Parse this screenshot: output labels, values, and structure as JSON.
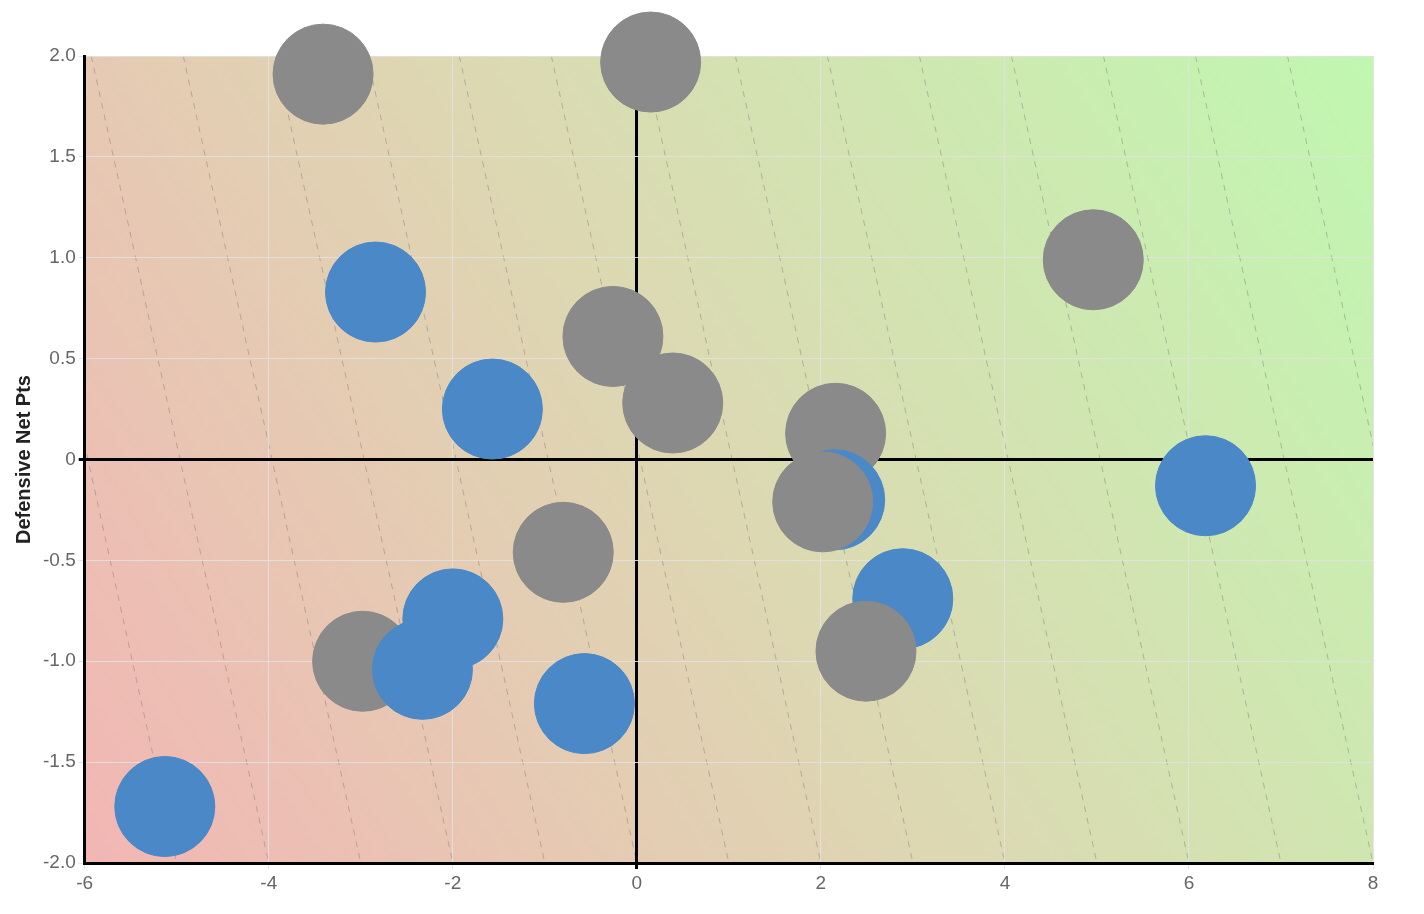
{
  "chart_data": {
    "type": "scatter",
    "ylabel": "Defensive Net Pts",
    "x": [
      -3.41,
      0.15,
      4.96,
      -2.84,
      -0.26,
      -1.57,
      0.39,
      2.16,
      6.18,
      2.15,
      2.02,
      -0.8,
      -2.0,
      -2.98,
      -2.33,
      -0.57,
      2.89,
      2.49,
      -5.13
    ],
    "values": [
      1.91,
      1.97,
      0.99,
      0.83,
      0.61,
      0.25,
      0.28,
      0.13,
      -0.13,
      -0.2,
      -0.21,
      -0.46,
      -0.79,
      -1.0,
      -1.04,
      -1.21,
      -0.69,
      -0.95,
      -1.72
    ],
    "colors": [
      "#8a8a8a",
      "#8a8a8a",
      "#8a8a8a",
      "#4a88c7",
      "#8a8a8a",
      "#4a88c7",
      "#8a8a8a",
      "#8a8a8a",
      "#4a88c7",
      "#4a88c7",
      "#8a8a8a",
      "#8a8a8a",
      "#4a88c7",
      "#8a8a8a",
      "#4a88c7",
      "#4a88c7",
      "#4a88c7",
      "#8a8a8a",
      "#4a88c7"
    ],
    "xlim": [
      -6,
      8
    ],
    "xticks": [
      -6,
      -4,
      -2,
      0,
      2,
      4,
      6,
      8
    ],
    "ylim": [
      -2,
      2
    ],
    "yticks": [
      {
        "value": -2,
        "label": "-2.0"
      },
      -1.5,
      {
        "value": -1,
        "label": "-1.0"
      },
      -0.5,
      0,
      0.5,
      {
        "value": 1,
        "label": "1.0"
      },
      1.5,
      {
        "value": 2,
        "label": "2.0"
      }
    ],
    "grid": true
  }
}
